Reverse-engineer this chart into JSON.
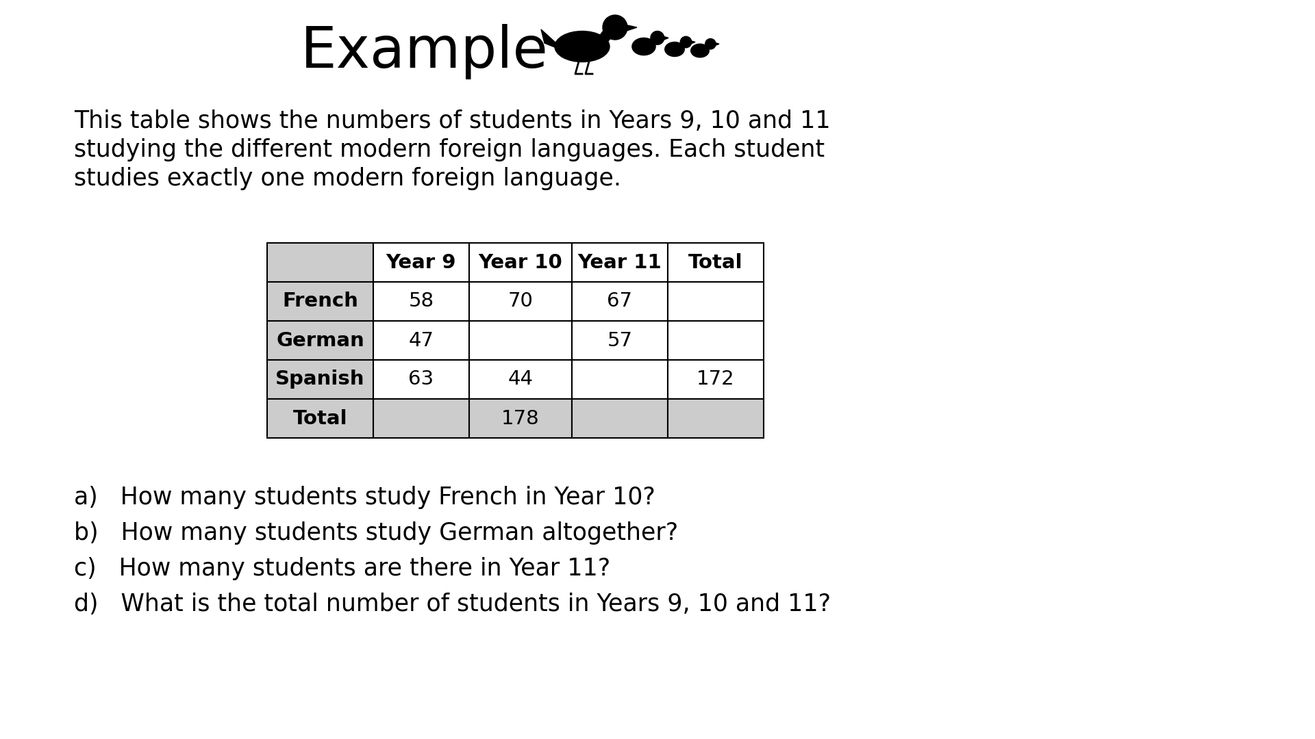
{
  "title": "Example",
  "title_fontsize": 60,
  "title_font": "DejaVu Sans",
  "bg_color": "#ffffff",
  "description_lines": [
    "This table shows the numbers of students in Years 9, 10 and 11",
    "studying the different modern foreign languages. Each student",
    "studies exactly one modern foreign language."
  ],
  "desc_fontsize": 25,
  "table_headers": [
    "",
    "Year 9",
    "Year 10",
    "Year 11",
    "Total"
  ],
  "table_rows": [
    [
      "French",
      "58",
      "70",
      "67",
      ""
    ],
    [
      "German",
      "47",
      "",
      "57",
      ""
    ],
    [
      "Spanish",
      "63",
      "44",
      "",
      "172"
    ],
    [
      "Total",
      "",
      "178",
      "",
      ""
    ]
  ],
  "questions": [
    "a)   How many students study French in Year 10?",
    "b)   How many students study German altogether?",
    "c)   How many students are there in Year 11?",
    "d)   What is the total number of students in Years 9, 10 and 11?"
  ],
  "question_fontsize": 25,
  "header_bg": "#cccccc",
  "cell_bg": "#ffffff",
  "border_color": "#000000"
}
